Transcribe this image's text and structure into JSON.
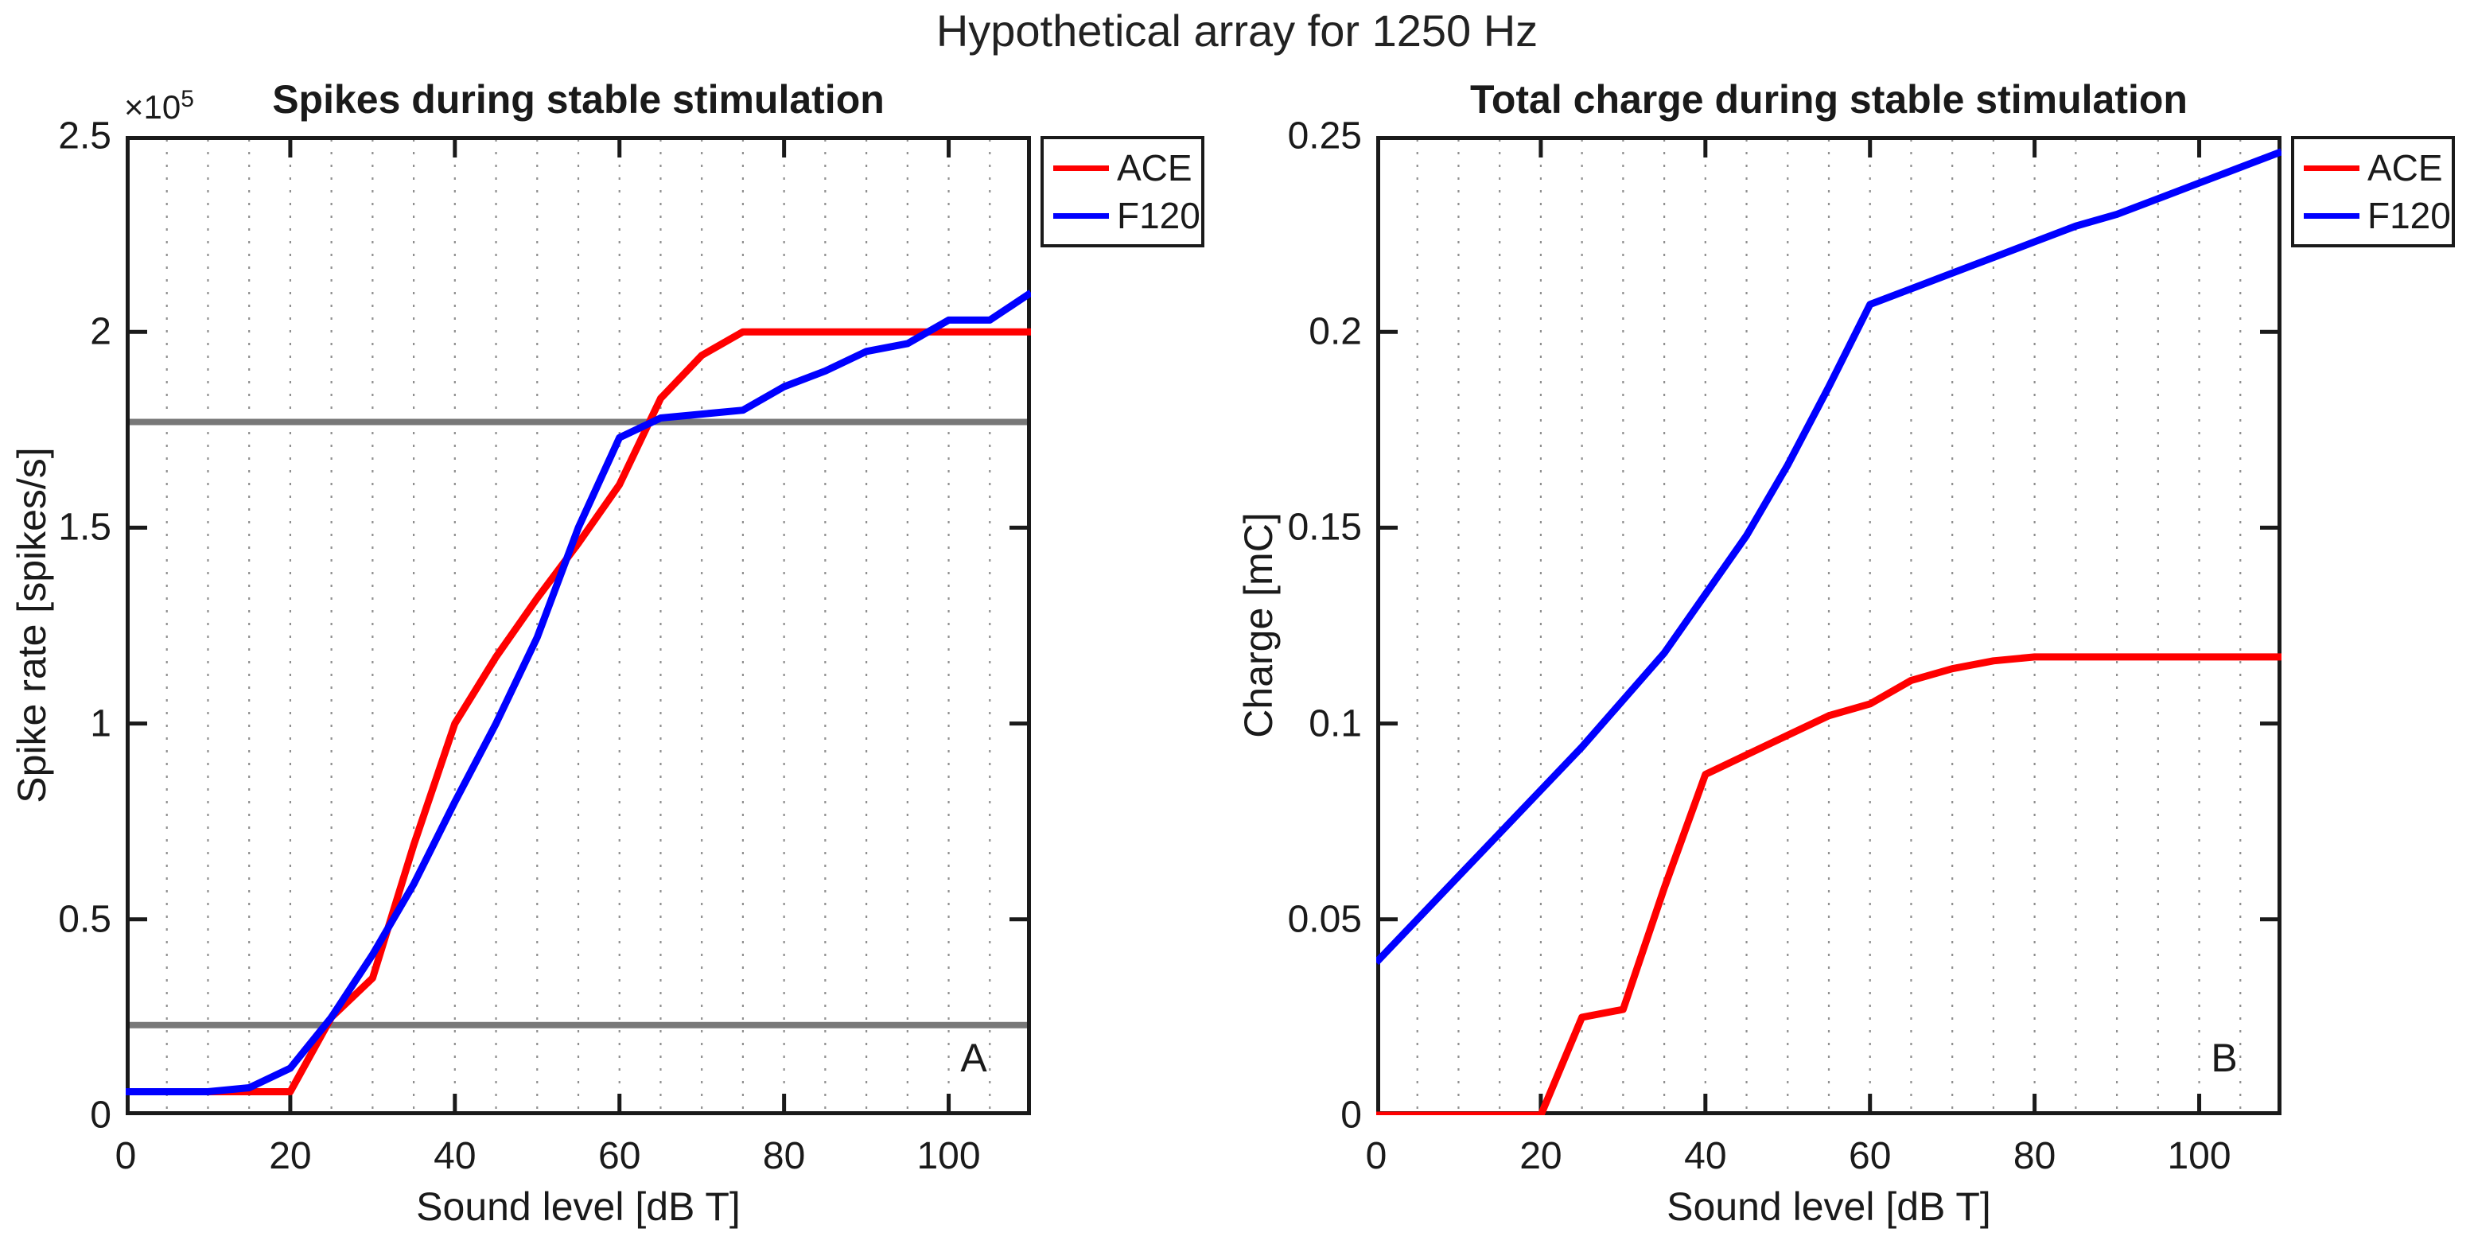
{
  "figure": {
    "title": "Hypothetical array for 1250 Hz",
    "background": "#ffffff"
  },
  "colors": {
    "ace": "#ff0000",
    "f120": "#0000ff",
    "threshold_line": "#787878",
    "grid": "#8f8f8f",
    "axis": "#1a1a1a"
  },
  "legend": {
    "entries": [
      {
        "label": "ACE",
        "color": "#ff0000"
      },
      {
        "label": "F120",
        "color": "#0000ff"
      }
    ],
    "position": "outside-top-right"
  },
  "chart_data": [
    {
      "type": "line",
      "panel_label": "A",
      "title": "Spikes during stable stimulation",
      "xlabel": "Sound level [dB T]",
      "ylabel": "Spike rate [spikes/s]",
      "y_exponent_label": {
        "base": "×10",
        "exp": "5"
      },
      "y_units_note": "y values in 10^5 spikes/s",
      "xlim": [
        0,
        110
      ],
      "ylim": [
        0,
        2.5
      ],
      "xticks": [
        0,
        20,
        40,
        60,
        80,
        100
      ],
      "xtick_labels": [
        "0",
        "20",
        "40",
        "60",
        "80",
        "100"
      ],
      "yticks": [
        0,
        0.5,
        1,
        1.5,
        2,
        2.5
      ],
      "ytick_labels": [
        "0",
        "0.5",
        "1",
        "1.5",
        "2",
        "2.5"
      ],
      "minor_x_gridlines_every": 5,
      "grid": "vertical-dotted-only",
      "x": [
        0,
        5,
        10,
        15,
        20,
        25,
        30,
        35,
        40,
        45,
        50,
        55,
        60,
        65,
        70,
        75,
        80,
        85,
        90,
        95,
        100,
        105,
        110
      ],
      "series": [
        {
          "name": "ACE",
          "color": "#ff0000",
          "values": [
            0.06,
            0.06,
            0.06,
            0.06,
            0.06,
            0.25,
            0.35,
            0.69,
            1.0,
            1.17,
            1.32,
            1.46,
            1.61,
            1.83,
            1.94,
            2.0,
            2.0,
            2.0,
            2.0,
            2.0,
            2.0,
            2.0,
            2.0
          ]
        },
        {
          "name": "F120",
          "color": "#0000ff",
          "values": [
            0.06,
            0.06,
            0.06,
            0.07,
            0.12,
            0.25,
            0.41,
            0.59,
            0.8,
            1.0,
            1.22,
            1.5,
            1.73,
            1.78,
            1.79,
            1.8,
            1.86,
            1.9,
            1.95,
            1.97,
            2.03,
            2.03,
            2.1
          ]
        }
      ],
      "hlines": [
        {
          "y": 1.77,
          "color": "#787878"
        },
        {
          "y": 0.23,
          "color": "#787878"
        }
      ]
    },
    {
      "type": "line",
      "panel_label": "B",
      "title": "Total charge during stable stimulation",
      "xlabel": "Sound level [dB T]",
      "ylabel": "Charge [mC]",
      "xlim": [
        0,
        110
      ],
      "ylim": [
        0,
        0.25
      ],
      "xticks": [
        0,
        20,
        40,
        60,
        80,
        100
      ],
      "xtick_labels": [
        "0",
        "20",
        "40",
        "60",
        "80",
        "100"
      ],
      "yticks": [
        0,
        0.05,
        0.1,
        0.15,
        0.2,
        0.25
      ],
      "ytick_labels": [
        "0",
        "0.05",
        "0.1",
        "0.15",
        "0.2",
        "0.25"
      ],
      "minor_x_gridlines_every": 5,
      "grid": "vertical-dotted-only",
      "x": [
        0,
        5,
        10,
        15,
        20,
        25,
        30,
        35,
        40,
        45,
        50,
        55,
        60,
        65,
        70,
        75,
        80,
        85,
        90,
        95,
        100,
        105,
        110
      ],
      "series": [
        {
          "name": "ACE",
          "color": "#ff0000",
          "values": [
            0,
            0,
            0,
            0,
            0,
            0.025,
            0.027,
            0.058,
            0.087,
            0.092,
            0.097,
            0.102,
            0.105,
            0.111,
            0.114,
            0.116,
            0.117,
            0.117,
            0.117,
            0.117,
            0.117,
            0.117,
            0.117
          ]
        },
        {
          "name": "F120",
          "color": "#0000ff",
          "values": [
            0.039,
            0.05,
            0.061,
            0.072,
            0.083,
            0.094,
            0.106,
            0.118,
            0.133,
            0.148,
            0.166,
            0.186,
            0.207,
            0.211,
            0.215,
            0.219,
            0.223,
            0.227,
            0.23,
            0.234,
            0.238,
            0.242,
            0.246
          ]
        }
      ],
      "hlines": []
    }
  ]
}
